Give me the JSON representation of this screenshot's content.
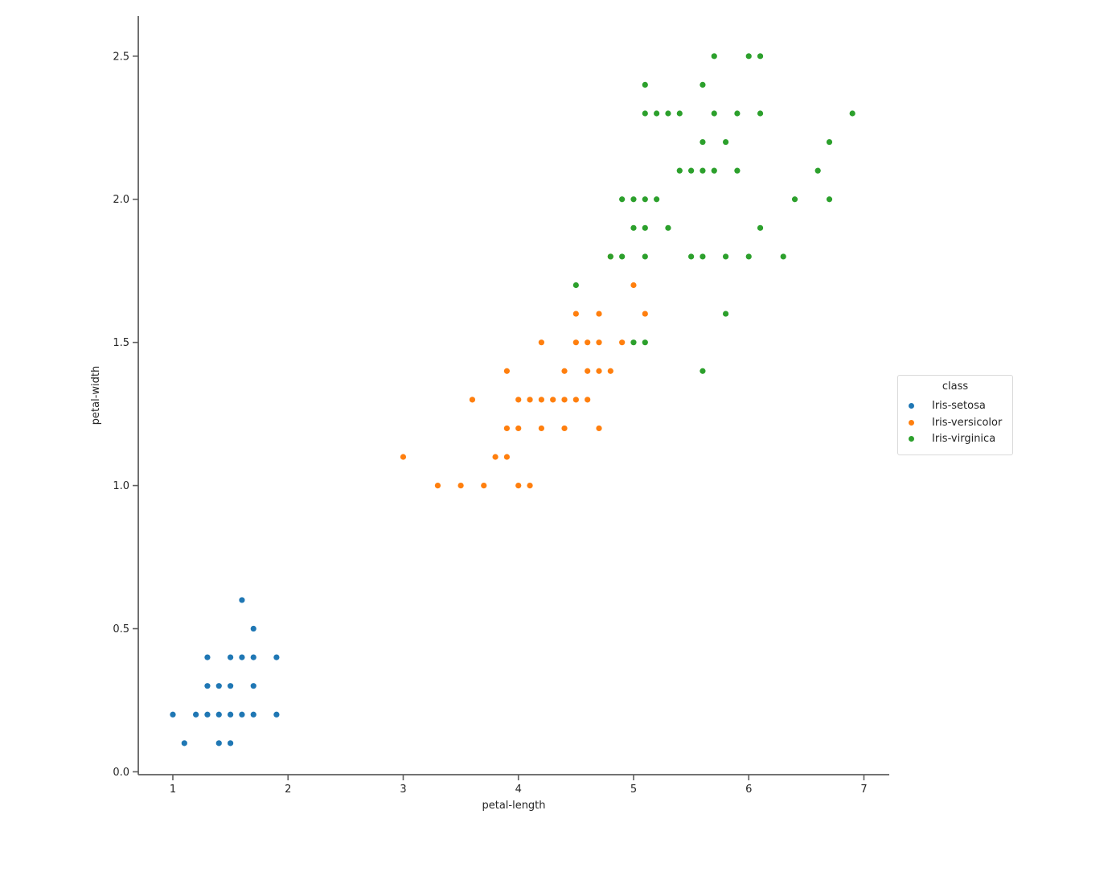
{
  "figure": {
    "background": "#ffffff",
    "text_color": "#262626",
    "axis_color": "#5f5f5f"
  },
  "chart_data": {
    "type": "scatter",
    "title": "",
    "xlabel": "petal-length",
    "ylabel": "petal-width",
    "xlim": [
      0.7,
      7.22
    ],
    "ylim": [
      -0.01,
      2.64
    ],
    "xticks": [
      1,
      2,
      3,
      4,
      5,
      6,
      7
    ],
    "xtick_labels": [
      "1",
      "2",
      "3",
      "4",
      "5",
      "6",
      "7"
    ],
    "yticks": [
      0.0,
      0.5,
      1.0,
      1.5,
      2.0,
      2.5
    ],
    "ytick_labels": [
      "0.0",
      "0.5",
      "1.0",
      "1.5",
      "2.0",
      "2.5"
    ],
    "grid": false,
    "marker_radius": 3.6,
    "legend": {
      "title": "class",
      "position": "right-outside"
    },
    "series": [
      {
        "name": "Iris-setosa",
        "color": "#1f77b4",
        "points": [
          [
            1.0,
            0.2
          ],
          [
            1.1,
            0.1
          ],
          [
            1.2,
            0.2
          ],
          [
            1.3,
            0.2
          ],
          [
            1.3,
            0.3
          ],
          [
            1.3,
            0.4
          ],
          [
            1.4,
            0.1
          ],
          [
            1.4,
            0.2
          ],
          [
            1.4,
            0.3
          ],
          [
            1.5,
            0.1
          ],
          [
            1.5,
            0.2
          ],
          [
            1.5,
            0.3
          ],
          [
            1.5,
            0.4
          ],
          [
            1.6,
            0.2
          ],
          [
            1.6,
            0.4
          ],
          [
            1.6,
            0.6
          ],
          [
            1.7,
            0.2
          ],
          [
            1.7,
            0.3
          ],
          [
            1.7,
            0.4
          ],
          [
            1.7,
            0.5
          ],
          [
            1.9,
            0.2
          ],
          [
            1.9,
            0.4
          ]
        ]
      },
      {
        "name": "Iris-versicolor",
        "color": "#ff7f0e",
        "points": [
          [
            3.0,
            1.1
          ],
          [
            3.3,
            1.0
          ],
          [
            3.5,
            1.0
          ],
          [
            3.6,
            1.3
          ],
          [
            3.7,
            1.0
          ],
          [
            3.8,
            1.1
          ],
          [
            3.9,
            1.1
          ],
          [
            3.9,
            1.2
          ],
          [
            3.9,
            1.4
          ],
          [
            4.0,
            1.0
          ],
          [
            4.0,
            1.2
          ],
          [
            4.0,
            1.3
          ],
          [
            4.1,
            1.0
          ],
          [
            4.1,
            1.3
          ],
          [
            4.2,
            1.2
          ],
          [
            4.2,
            1.3
          ],
          [
            4.2,
            1.5
          ],
          [
            4.3,
            1.3
          ],
          [
            4.4,
            1.2
          ],
          [
            4.4,
            1.3
          ],
          [
            4.4,
            1.4
          ],
          [
            4.5,
            1.3
          ],
          [
            4.5,
            1.5
          ],
          [
            4.5,
            1.6
          ],
          [
            4.6,
            1.3
          ],
          [
            4.6,
            1.4
          ],
          [
            4.6,
            1.5
          ],
          [
            4.7,
            1.2
          ],
          [
            4.7,
            1.4
          ],
          [
            4.7,
            1.5
          ],
          [
            4.7,
            1.6
          ],
          [
            4.8,
            1.4
          ],
          [
            4.8,
            1.8
          ],
          [
            4.9,
            1.5
          ],
          [
            5.0,
            1.7
          ],
          [
            5.1,
            1.6
          ]
        ]
      },
      {
        "name": "Iris-virginica",
        "color": "#2ca02c",
        "points": [
          [
            4.5,
            1.7
          ],
          [
            4.8,
            1.8
          ],
          [
            4.9,
            1.8
          ],
          [
            4.9,
            2.0
          ],
          [
            5.0,
            1.5
          ],
          [
            5.0,
            1.9
          ],
          [
            5.0,
            2.0
          ],
          [
            5.1,
            1.5
          ],
          [
            5.1,
            1.8
          ],
          [
            5.1,
            1.9
          ],
          [
            5.1,
            2.0
          ],
          [
            5.1,
            2.3
          ],
          [
            5.1,
            2.4
          ],
          [
            5.2,
            2.0
          ],
          [
            5.2,
            2.3
          ],
          [
            5.3,
            1.9
          ],
          [
            5.3,
            2.3
          ],
          [
            5.4,
            2.1
          ],
          [
            5.4,
            2.3
          ],
          [
            5.5,
            1.8
          ],
          [
            5.5,
            2.1
          ],
          [
            5.6,
            1.4
          ],
          [
            5.6,
            1.8
          ],
          [
            5.6,
            2.1
          ],
          [
            5.6,
            2.2
          ],
          [
            5.6,
            2.4
          ],
          [
            5.7,
            2.1
          ],
          [
            5.7,
            2.3
          ],
          [
            5.7,
            2.5
          ],
          [
            5.8,
            1.6
          ],
          [
            5.8,
            1.8
          ],
          [
            5.8,
            2.2
          ],
          [
            5.9,
            2.1
          ],
          [
            5.9,
            2.3
          ],
          [
            6.0,
            1.8
          ],
          [
            6.0,
            2.5
          ],
          [
            6.1,
            1.9
          ],
          [
            6.1,
            2.3
          ],
          [
            6.1,
            2.5
          ],
          [
            6.3,
            1.8
          ],
          [
            6.4,
            2.0
          ],
          [
            6.6,
            2.1
          ],
          [
            6.7,
            2.0
          ],
          [
            6.7,
            2.2
          ],
          [
            6.9,
            2.3
          ]
        ]
      }
    ]
  }
}
